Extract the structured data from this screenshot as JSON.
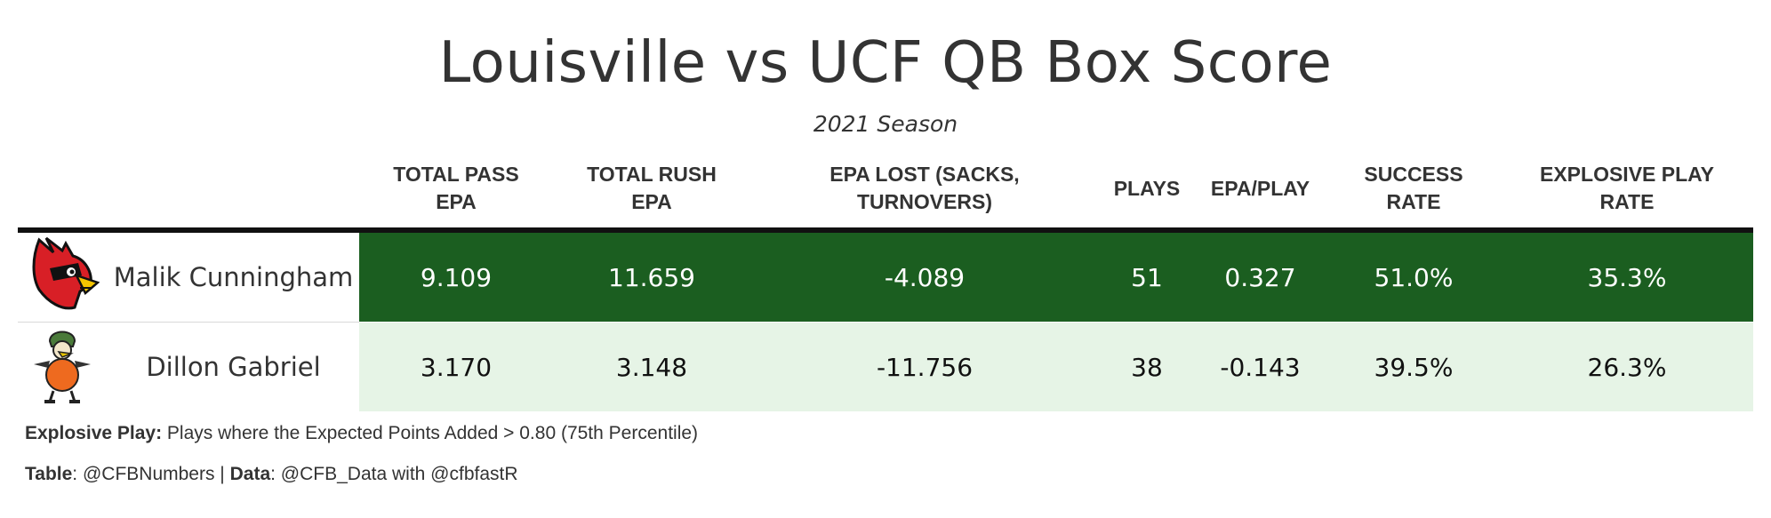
{
  "title": "Louisville vs UCF QB Box Score",
  "subtitle": "2021 Season",
  "columns": [
    {
      "l1": "TOTAL PASS",
      "l2": "EPA"
    },
    {
      "l1": "TOTAL RUSH",
      "l2": "EPA"
    },
    {
      "l1": "EPA LOST (SACKS,",
      "l2": "TURNOVERS)"
    },
    {
      "l1": "PLAYS",
      "l2": ""
    },
    {
      "l1": "EPA/PLAY",
      "l2": ""
    },
    {
      "l1": "SUCCESS",
      "l2": "RATE"
    },
    {
      "l1": "EXPLOSIVE PLAY",
      "l2": "RATE"
    }
  ],
  "colors": {
    "row1_bg": "#1b5e20",
    "row2_bg": "#e6f4e6",
    "text": "#333333"
  },
  "rows": [
    {
      "logo_icon": "louisville-cardinal-logo-icon",
      "name": "Malik Cunningham",
      "values": [
        "9.109",
        "11.659",
        "-4.089",
        "51",
        "0.327",
        "51.0%",
        "35.3%"
      ]
    },
    {
      "logo_icon": "ucf-knight-logo-icon",
      "name": "Dillon Gabriel",
      "values": [
        "3.170",
        "3.148",
        "-11.756",
        "38",
        "-0.143",
        "39.5%",
        "26.3%"
      ]
    }
  ],
  "footer": {
    "note_bold": "Explosive Play:",
    "note_text": " Plays where the Expected Points Added > 0.80 (75th Percentile)",
    "credit_table_label": "Table",
    "credit_table_value": ": @CFBNumbers | ",
    "credit_data_label": "Data",
    "credit_data_value": ": @CFB_Data with @cfbfastR"
  },
  "chart_data": {
    "type": "table",
    "title": "Louisville vs UCF QB Box Score",
    "subtitle": "2021 Season",
    "columns": [
      "TOTAL PASS EPA",
      "TOTAL RUSH EPA",
      "EPA LOST (SACKS, TURNOVERS)",
      "PLAYS",
      "EPA/PLAY",
      "SUCCESS RATE",
      "EXPLOSIVE PLAY RATE"
    ],
    "rows": [
      {
        "player": "Malik Cunningham",
        "values": [
          9.109,
          11.659,
          -4.089,
          51,
          0.327,
          0.51,
          0.353
        ]
      },
      {
        "player": "Dillon Gabriel",
        "values": [
          3.17,
          3.148,
          -11.756,
          38,
          -0.143,
          0.395,
          0.263
        ]
      }
    ]
  }
}
